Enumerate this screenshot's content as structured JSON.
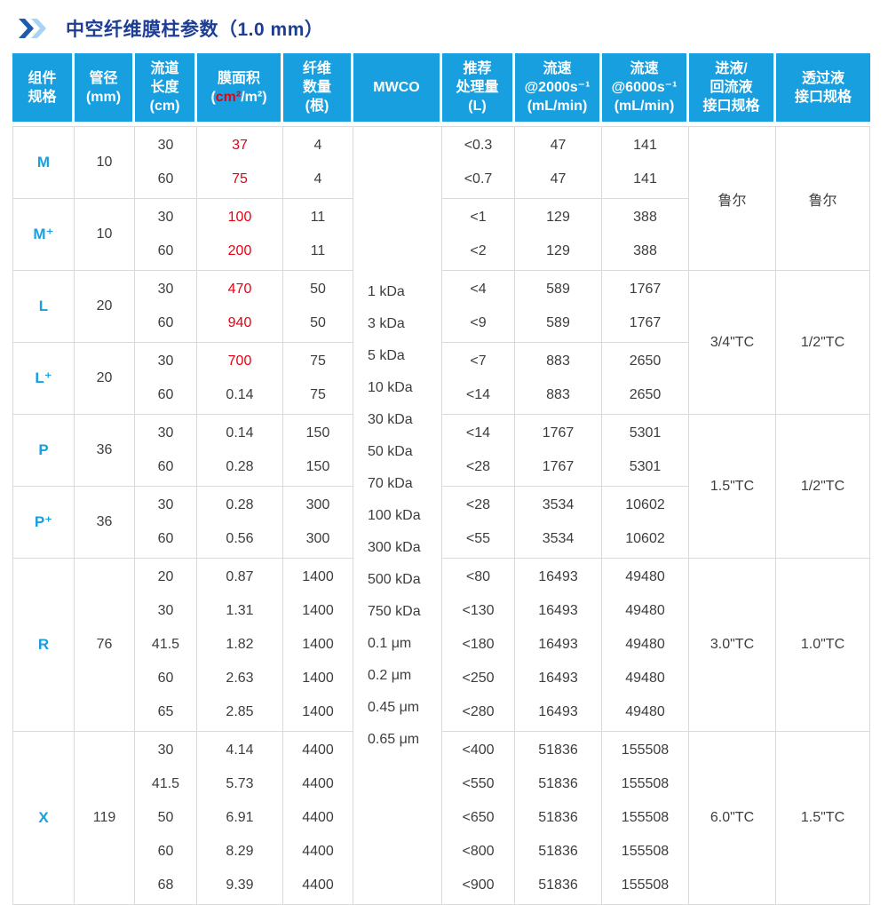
{
  "header": {
    "title": "中空纤维膜柱参数（1.0 mm）",
    "icon": "double-chevron-right-icon"
  },
  "colors": {
    "header_bg": "#179FE0",
    "title": "#1D3E94",
    "spec": "#179FE0",
    "red": "#E60012",
    "body_text": "#3D3D3D",
    "grid": "#DADADA",
    "chevron_dark": "#1E5AAD",
    "chevron_light": "#A9D3F2"
  },
  "table": {
    "headers": [
      {
        "id": "spec",
        "lines": [
          "组件",
          "规格"
        ]
      },
      {
        "id": "diameter",
        "lines": [
          "管径",
          "(mm)"
        ]
      },
      {
        "id": "length",
        "lines": [
          "流道",
          "长度",
          "(cm)"
        ]
      },
      {
        "id": "area",
        "lines": [
          "膜面积",
          "(cm²/m²)"
        ],
        "red_substr": "cm²"
      },
      {
        "id": "fibers",
        "lines": [
          "纤维",
          "数量",
          "(根)"
        ]
      },
      {
        "id": "mwco",
        "lines": [
          "MWCO"
        ]
      },
      {
        "id": "throughput",
        "lines": [
          "推荐",
          "处理量",
          "(L)"
        ]
      },
      {
        "id": "flow2000",
        "lines": [
          "流速",
          "@2000s⁻¹",
          "(mL/min)"
        ]
      },
      {
        "id": "flow6000",
        "lines": [
          "流速",
          "@6000s⁻¹",
          "(mL/min)"
        ]
      },
      {
        "id": "inlet",
        "lines": [
          "进液/",
          "回流液",
          "接口规格"
        ]
      },
      {
        "id": "permeate",
        "lines": [
          "透过液",
          "接口规格"
        ]
      }
    ],
    "mwco_values": [
      "1 kDa",
      "3 kDa",
      "5 kDa",
      "10 kDa",
      "30 kDa",
      "50 kDa",
      "70 kDa",
      "100 kDa",
      "300 kDa",
      "500 kDa",
      "750 kDa",
      "0.1 μm",
      "0.2 μm",
      "0.45 μm",
      "0.65 μm"
    ],
    "groups": [
      {
        "spec": "M",
        "diameter": "10",
        "rows": [
          {
            "length": "30",
            "area": "37",
            "area_red": true,
            "fibers": "4",
            "throughput": "<0.3",
            "flow2000": "47",
            "flow6000": "141"
          },
          {
            "length": "60",
            "area": "75",
            "area_red": true,
            "fibers": "4",
            "throughput": "<0.7",
            "flow2000": "47",
            "flow6000": "141"
          }
        ]
      },
      {
        "spec": "M⁺",
        "diameter": "10",
        "rows": [
          {
            "length": "30",
            "area": "100",
            "area_red": true,
            "fibers": "11",
            "throughput": "<1",
            "flow2000": "129",
            "flow6000": "388"
          },
          {
            "length": "60",
            "area": "200",
            "area_red": true,
            "fibers": "11",
            "throughput": "<2",
            "flow2000": "129",
            "flow6000": "388"
          }
        ]
      },
      {
        "spec": "L",
        "diameter": "20",
        "rows": [
          {
            "length": "30",
            "area": "470",
            "area_red": true,
            "fibers": "50",
            "throughput": "<4",
            "flow2000": "589",
            "flow6000": "1767"
          },
          {
            "length": "60",
            "area": "940",
            "area_red": true,
            "fibers": "50",
            "throughput": "<9",
            "flow2000": "589",
            "flow6000": "1767"
          }
        ]
      },
      {
        "spec": "L⁺",
        "diameter": "20",
        "rows": [
          {
            "length": "30",
            "area": "700",
            "area_red": true,
            "fibers": "75",
            "throughput": "<7",
            "flow2000": "883",
            "flow6000": "2650"
          },
          {
            "length": "60",
            "area": "0.14",
            "area_red": false,
            "fibers": "75",
            "throughput": "<14",
            "flow2000": "883",
            "flow6000": "2650"
          }
        ]
      },
      {
        "spec": "P",
        "diameter": "36",
        "rows": [
          {
            "length": "30",
            "area": "0.14",
            "area_red": false,
            "fibers": "150",
            "throughput": "<14",
            "flow2000": "1767",
            "flow6000": "5301"
          },
          {
            "length": "60",
            "area": "0.28",
            "area_red": false,
            "fibers": "150",
            "throughput": "<28",
            "flow2000": "1767",
            "flow6000": "5301"
          }
        ]
      },
      {
        "spec": "P⁺",
        "diameter": "36",
        "rows": [
          {
            "length": "30",
            "area": "0.28",
            "area_red": false,
            "fibers": "300",
            "throughput": "<28",
            "flow2000": "3534",
            "flow6000": "10602"
          },
          {
            "length": "60",
            "area": "0.56",
            "area_red": false,
            "fibers": "300",
            "throughput": "<55",
            "flow2000": "3534",
            "flow6000": "10602"
          }
        ]
      },
      {
        "spec": "R",
        "diameter": "76",
        "rows": [
          {
            "length": "20",
            "area": "0.87",
            "area_red": false,
            "fibers": "1400",
            "throughput": "<80",
            "flow2000": "16493",
            "flow6000": "49480"
          },
          {
            "length": "30",
            "area": "1.31",
            "area_red": false,
            "fibers": "1400",
            "throughput": "<130",
            "flow2000": "16493",
            "flow6000": "49480"
          },
          {
            "length": "41.5",
            "area": "1.82",
            "area_red": false,
            "fibers": "1400",
            "throughput": "<180",
            "flow2000": "16493",
            "flow6000": "49480"
          },
          {
            "length": "60",
            "area": "2.63",
            "area_red": false,
            "fibers": "1400",
            "throughput": "<250",
            "flow2000": "16493",
            "flow6000": "49480"
          },
          {
            "length": "65",
            "area": "2.85",
            "area_red": false,
            "fibers": "1400",
            "throughput": "<280",
            "flow2000": "16493",
            "flow6000": "49480"
          }
        ]
      },
      {
        "spec": "X",
        "diameter": "119",
        "rows": [
          {
            "length": "30",
            "area": "4.14",
            "area_red": false,
            "fibers": "4400",
            "throughput": "<400",
            "flow2000": "51836",
            "flow6000": "155508"
          },
          {
            "length": "41.5",
            "area": "5.73",
            "area_red": false,
            "fibers": "4400",
            "throughput": "<550",
            "flow2000": "51836",
            "flow6000": "155508"
          },
          {
            "length": "50",
            "area": "6.91",
            "area_red": false,
            "fibers": "4400",
            "throughput": "<650",
            "flow2000": "51836",
            "flow6000": "155508"
          },
          {
            "length": "60",
            "area": "8.29",
            "area_red": false,
            "fibers": "4400",
            "throughput": "<800",
            "flow2000": "51836",
            "flow6000": "155508"
          },
          {
            "length": "68",
            "area": "9.39",
            "area_red": false,
            "fibers": "4400",
            "throughput": "<900",
            "flow2000": "51836",
            "flow6000": "155508"
          }
        ]
      }
    ],
    "interface_spans": [
      {
        "start": 0,
        "rowspan": 2,
        "inlet": "鲁尔",
        "permeate": "鲁尔"
      },
      {
        "start": 2,
        "rowspan": 2,
        "inlet": "3/4\"TC",
        "permeate": "1/2\"TC"
      },
      {
        "start": 4,
        "rowspan": 2,
        "inlet": "1.5\"TC",
        "permeate": "1/2\"TC"
      },
      {
        "start": 6,
        "rowspan": 1,
        "inlet": "3.0\"TC",
        "permeate": "1.0\"TC"
      },
      {
        "start": 7,
        "rowspan": 1,
        "inlet": "6.0\"TC",
        "permeate": "1.5\"TC"
      }
    ]
  }
}
